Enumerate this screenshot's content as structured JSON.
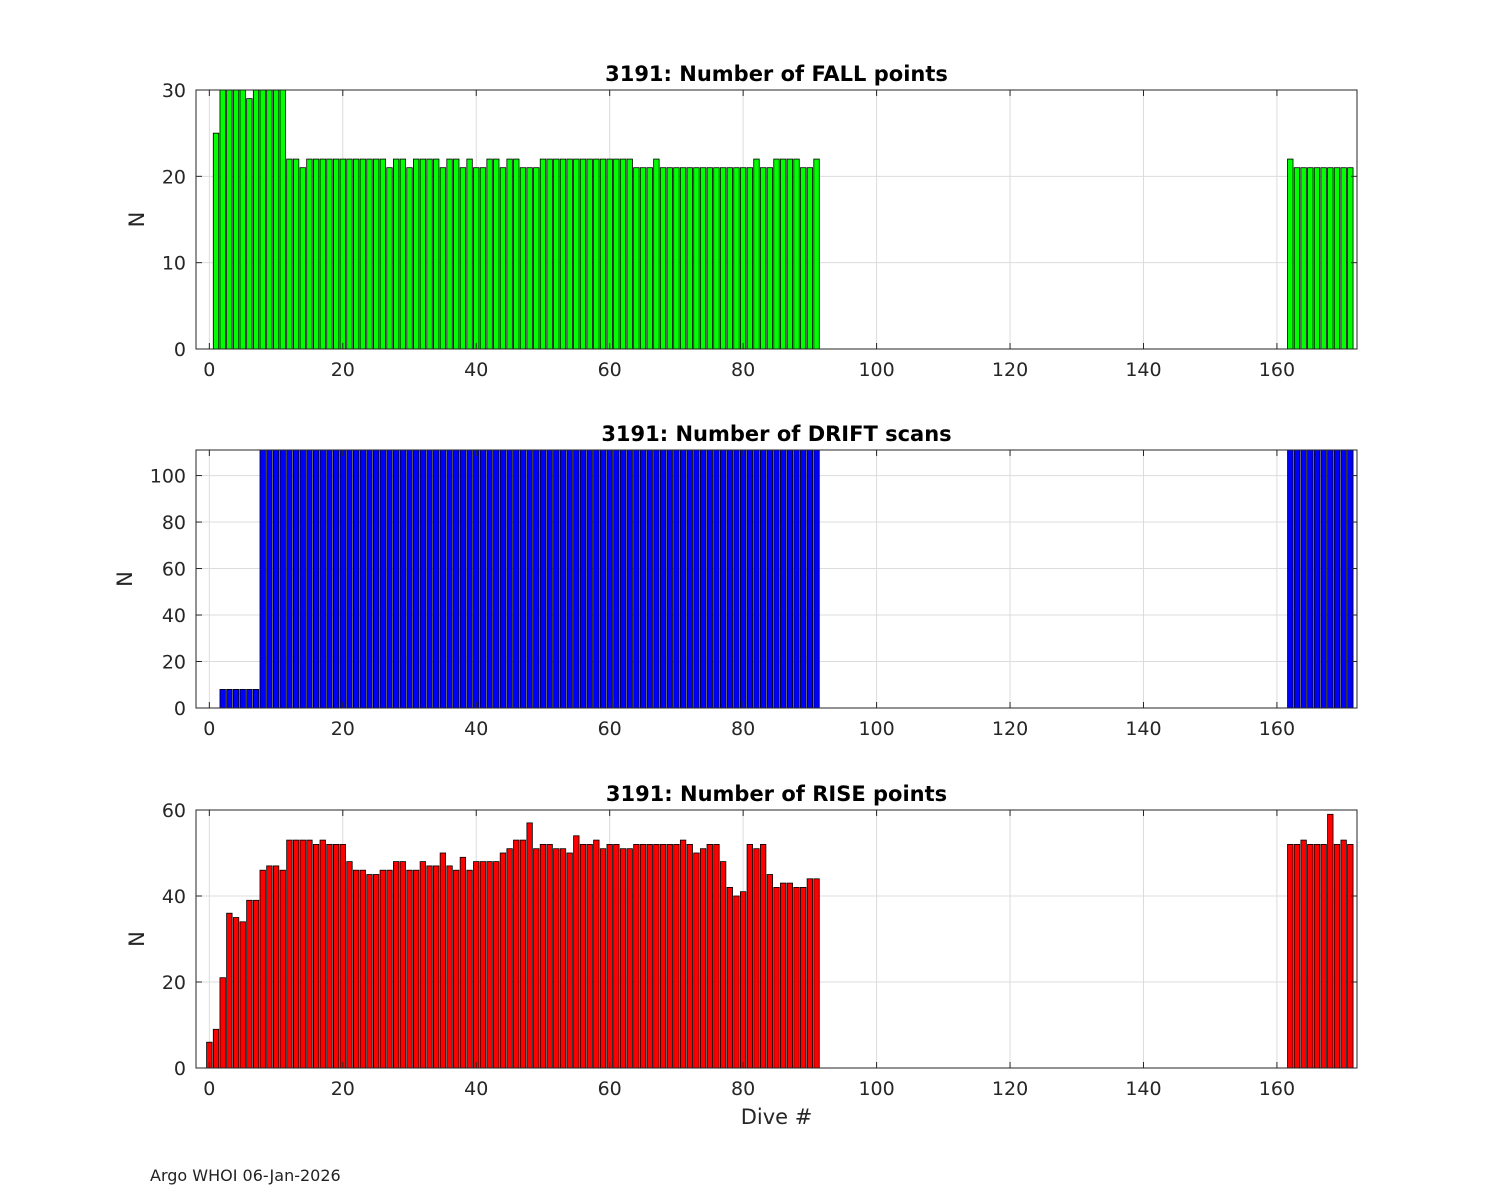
{
  "footer": "Argo WHOI 06-Jan-2026",
  "chart_data": [
    {
      "type": "bar",
      "title": "3191: Number of FALL points",
      "xlabel": "",
      "ylabel": "N",
      "xlim": [
        -2,
        172
      ],
      "ylim": [
        0,
        30
      ],
      "xticks": [
        0,
        20,
        40,
        60,
        80,
        100,
        120,
        140,
        160
      ],
      "yticks": [
        0,
        10,
        20,
        30
      ],
      "grid": true,
      "color": "#00ff00",
      "x": [
        1,
        2,
        3,
        4,
        5,
        6,
        7,
        8,
        9,
        10,
        11,
        12,
        13,
        14,
        15,
        16,
        17,
        18,
        19,
        20,
        21,
        22,
        23,
        24,
        25,
        26,
        27,
        28,
        29,
        30,
        31,
        32,
        33,
        34,
        35,
        36,
        37,
        38,
        39,
        40,
        41,
        42,
        43,
        44,
        45,
        46,
        47,
        48,
        49,
        50,
        51,
        52,
        53,
        54,
        55,
        56,
        57,
        58,
        59,
        60,
        61,
        62,
        63,
        64,
        65,
        66,
        67,
        68,
        69,
        70,
        71,
        72,
        73,
        74,
        75,
        76,
        77,
        78,
        79,
        80,
        81,
        82,
        83,
        84,
        85,
        86,
        87,
        88,
        89,
        90,
        91,
        162,
        163,
        164,
        165,
        166,
        167,
        168,
        169,
        170,
        171
      ],
      "values": [
        25,
        30,
        30,
        30,
        30,
        29,
        30,
        30,
        30,
        30,
        30,
        22,
        22,
        21,
        22,
        22,
        22,
        22,
        22,
        22,
        22,
        22,
        22,
        22,
        22,
        22,
        21,
        22,
        22,
        21,
        22,
        22,
        22,
        22,
        21,
        22,
        22,
        21,
        22,
        21,
        21,
        22,
        22,
        21,
        22,
        22,
        21,
        21,
        21,
        22,
        22,
        22,
        22,
        22,
        22,
        22,
        22,
        22,
        22,
        22,
        22,
        22,
        22,
        21,
        21,
        21,
        22,
        21,
        21,
        21,
        21,
        21,
        21,
        21,
        21,
        21,
        21,
        21,
        21,
        21,
        21,
        22,
        21,
        21,
        22,
        22,
        22,
        22,
        21,
        21,
        22,
        22,
        21,
        21,
        21,
        21,
        21,
        21,
        21,
        21,
        21
      ]
    },
    {
      "type": "bar",
      "title": "3191: Number of DRIFT scans",
      "xlabel": "",
      "ylabel": "N",
      "xlim": [
        -2,
        172
      ],
      "ylim": [
        0,
        111
      ],
      "xticks": [
        0,
        20,
        40,
        60,
        80,
        100,
        120,
        140,
        160
      ],
      "yticks": [
        0,
        20,
        40,
        60,
        80,
        100
      ],
      "grid": true,
      "color": "#0000ff",
      "x": [
        0,
        1,
        2,
        3,
        4,
        5,
        6,
        7,
        8,
        9,
        10,
        11,
        12,
        13,
        14,
        15,
        16,
        17,
        18,
        19,
        20,
        21,
        22,
        23,
        24,
        25,
        26,
        27,
        28,
        29,
        30,
        31,
        32,
        33,
        34,
        35,
        36,
        37,
        38,
        39,
        40,
        41,
        42,
        43,
        44,
        45,
        46,
        47,
        48,
        49,
        50,
        51,
        52,
        53,
        54,
        55,
        56,
        57,
        58,
        59,
        60,
        61,
        62,
        63,
        64,
        65,
        66,
        67,
        68,
        69,
        70,
        71,
        72,
        73,
        74,
        75,
        76,
        77,
        78,
        79,
        80,
        81,
        82,
        83,
        84,
        85,
        86,
        87,
        88,
        89,
        90,
        91,
        93,
        150,
        151,
        152,
        153,
        154,
        155,
        156,
        157,
        158,
        159,
        160,
        161,
        162,
        163,
        164,
        165,
        166,
        167,
        168,
        169,
        170,
        171
      ],
      "values": [
        0,
        0,
        8,
        8,
        8,
        8,
        8,
        8,
        111,
        111,
        111,
        111,
        111,
        111,
        111,
        111,
        111,
        111,
        111,
        111,
        111,
        111,
        111,
        111,
        111,
        111,
        111,
        111,
        111,
        111,
        111,
        111,
        111,
        111,
        111,
        111,
        111,
        111,
        111,
        111,
        111,
        111,
        111,
        111,
        111,
        111,
        111,
        111,
        111,
        111,
        111,
        111,
        111,
        111,
        111,
        111,
        111,
        111,
        111,
        111,
        111,
        111,
        111,
        111,
        111,
        111,
        111,
        111,
        111,
        111,
        111,
        111,
        111,
        111,
        111,
        111,
        111,
        111,
        111,
        111,
        111,
        111,
        111,
        111,
        111,
        111,
        111,
        111,
        111,
        111,
        111,
        111,
        0,
        0,
        0,
        0,
        0,
        0,
        0,
        0,
        0,
        0,
        0,
        0,
        0,
        111,
        111,
        111,
        111,
        111,
        111,
        111,
        111,
        111,
        111
      ]
    },
    {
      "type": "bar",
      "title": "3191: Number of RISE points",
      "xlabel": "Dive #",
      "ylabel": "N",
      "xlim": [
        -2,
        172
      ],
      "ylim": [
        0,
        60
      ],
      "xticks": [
        0,
        20,
        40,
        60,
        80,
        100,
        120,
        140,
        160
      ],
      "yticks": [
        0,
        20,
        40,
        60
      ],
      "grid": true,
      "color": "#ff0000",
      "x": [
        0,
        1,
        2,
        3,
        4,
        5,
        6,
        7,
        8,
        9,
        10,
        11,
        12,
        13,
        14,
        15,
        16,
        17,
        18,
        19,
        20,
        21,
        22,
        23,
        24,
        25,
        26,
        27,
        28,
        29,
        30,
        31,
        32,
        33,
        34,
        35,
        36,
        37,
        38,
        39,
        40,
        41,
        42,
        43,
        44,
        45,
        46,
        47,
        48,
        49,
        50,
        51,
        52,
        53,
        54,
        55,
        56,
        57,
        58,
        59,
        60,
        61,
        62,
        63,
        64,
        65,
        66,
        67,
        68,
        69,
        70,
        71,
        72,
        73,
        74,
        75,
        76,
        77,
        78,
        79,
        80,
        81,
        82,
        83,
        84,
        85,
        86,
        87,
        88,
        89,
        90,
        91,
        162,
        163,
        164,
        165,
        166,
        167,
        168,
        169,
        170,
        171
      ],
      "values": [
        6,
        9,
        21,
        36,
        35,
        34,
        39,
        39,
        46,
        47,
        47,
        46,
        53,
        53,
        53,
        53,
        52,
        53,
        52,
        52,
        52,
        48,
        46,
        46,
        45,
        45,
        46,
        46,
        48,
        48,
        46,
        46,
        48,
        47,
        47,
        50,
        47,
        46,
        49,
        46,
        48,
        48,
        48,
        48,
        50,
        51,
        53,
        53,
        57,
        51,
        52,
        52,
        51,
        51,
        50,
        54,
        52,
        52,
        53,
        51,
        52,
        52,
        51,
        51,
        52,
        52,
        52,
        52,
        52,
        52,
        52,
        53,
        52,
        50,
        51,
        52,
        52,
        48,
        42,
        40,
        41,
        52,
        51,
        52,
        45,
        42,
        43,
        43,
        42,
        42,
        44,
        44,
        52,
        52,
        53,
        52,
        52,
        52,
        59,
        52,
        53,
        52
      ]
    }
  ]
}
